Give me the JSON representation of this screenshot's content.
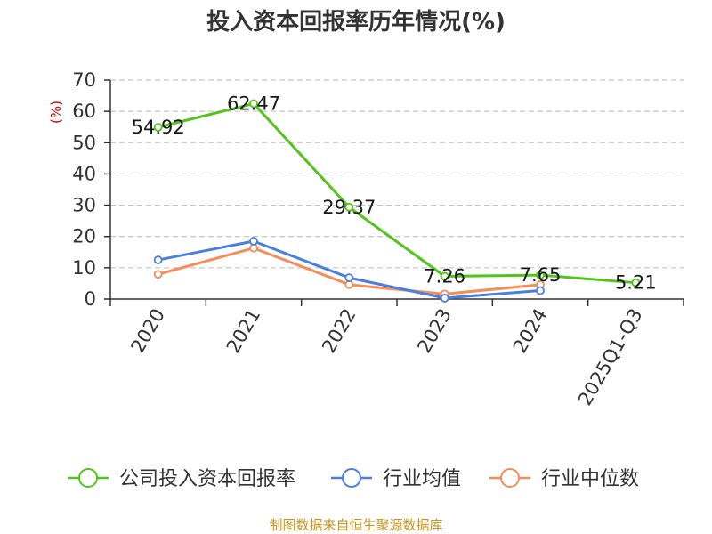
{
  "chart_data": {
    "type": "line",
    "title": "投入资本回报率历年情况(%)",
    "ylabel": "(%)",
    "categories": [
      "2020",
      "2021",
      "2022",
      "2023",
      "2024",
      "2025Q1-Q3"
    ],
    "ylim": [
      0,
      70
    ],
    "yticks": [
      0,
      10,
      20,
      30,
      40,
      50,
      60,
      70
    ],
    "grid": true,
    "legend_position": "bottom",
    "series": [
      {
        "name": "公司投入资本回报率",
        "color": "#52c41a",
        "values": [
          54.92,
          62.47,
          29.37,
          7.26,
          7.65,
          5.21
        ],
        "labels": [
          "54.92",
          "62.47",
          "29.37",
          "7.26",
          "7.65",
          "5.21"
        ]
      },
      {
        "name": "行业均值",
        "color": "#4a7fe0",
        "values": [
          12.5,
          18.5,
          6.8,
          0.3,
          2.7,
          null
        ]
      },
      {
        "name": "行业中位数",
        "color": "#f58c5a",
        "values": [
          7.9,
          16.3,
          4.6,
          1.6,
          4.6,
          null
        ]
      }
    ]
  },
  "source": "制图数据来自恒生聚源数据库",
  "colors": {
    "ylabel": "#cc0000",
    "source": "#c8961e",
    "grid": "#c8c8c8",
    "axis": "#333333"
  }
}
